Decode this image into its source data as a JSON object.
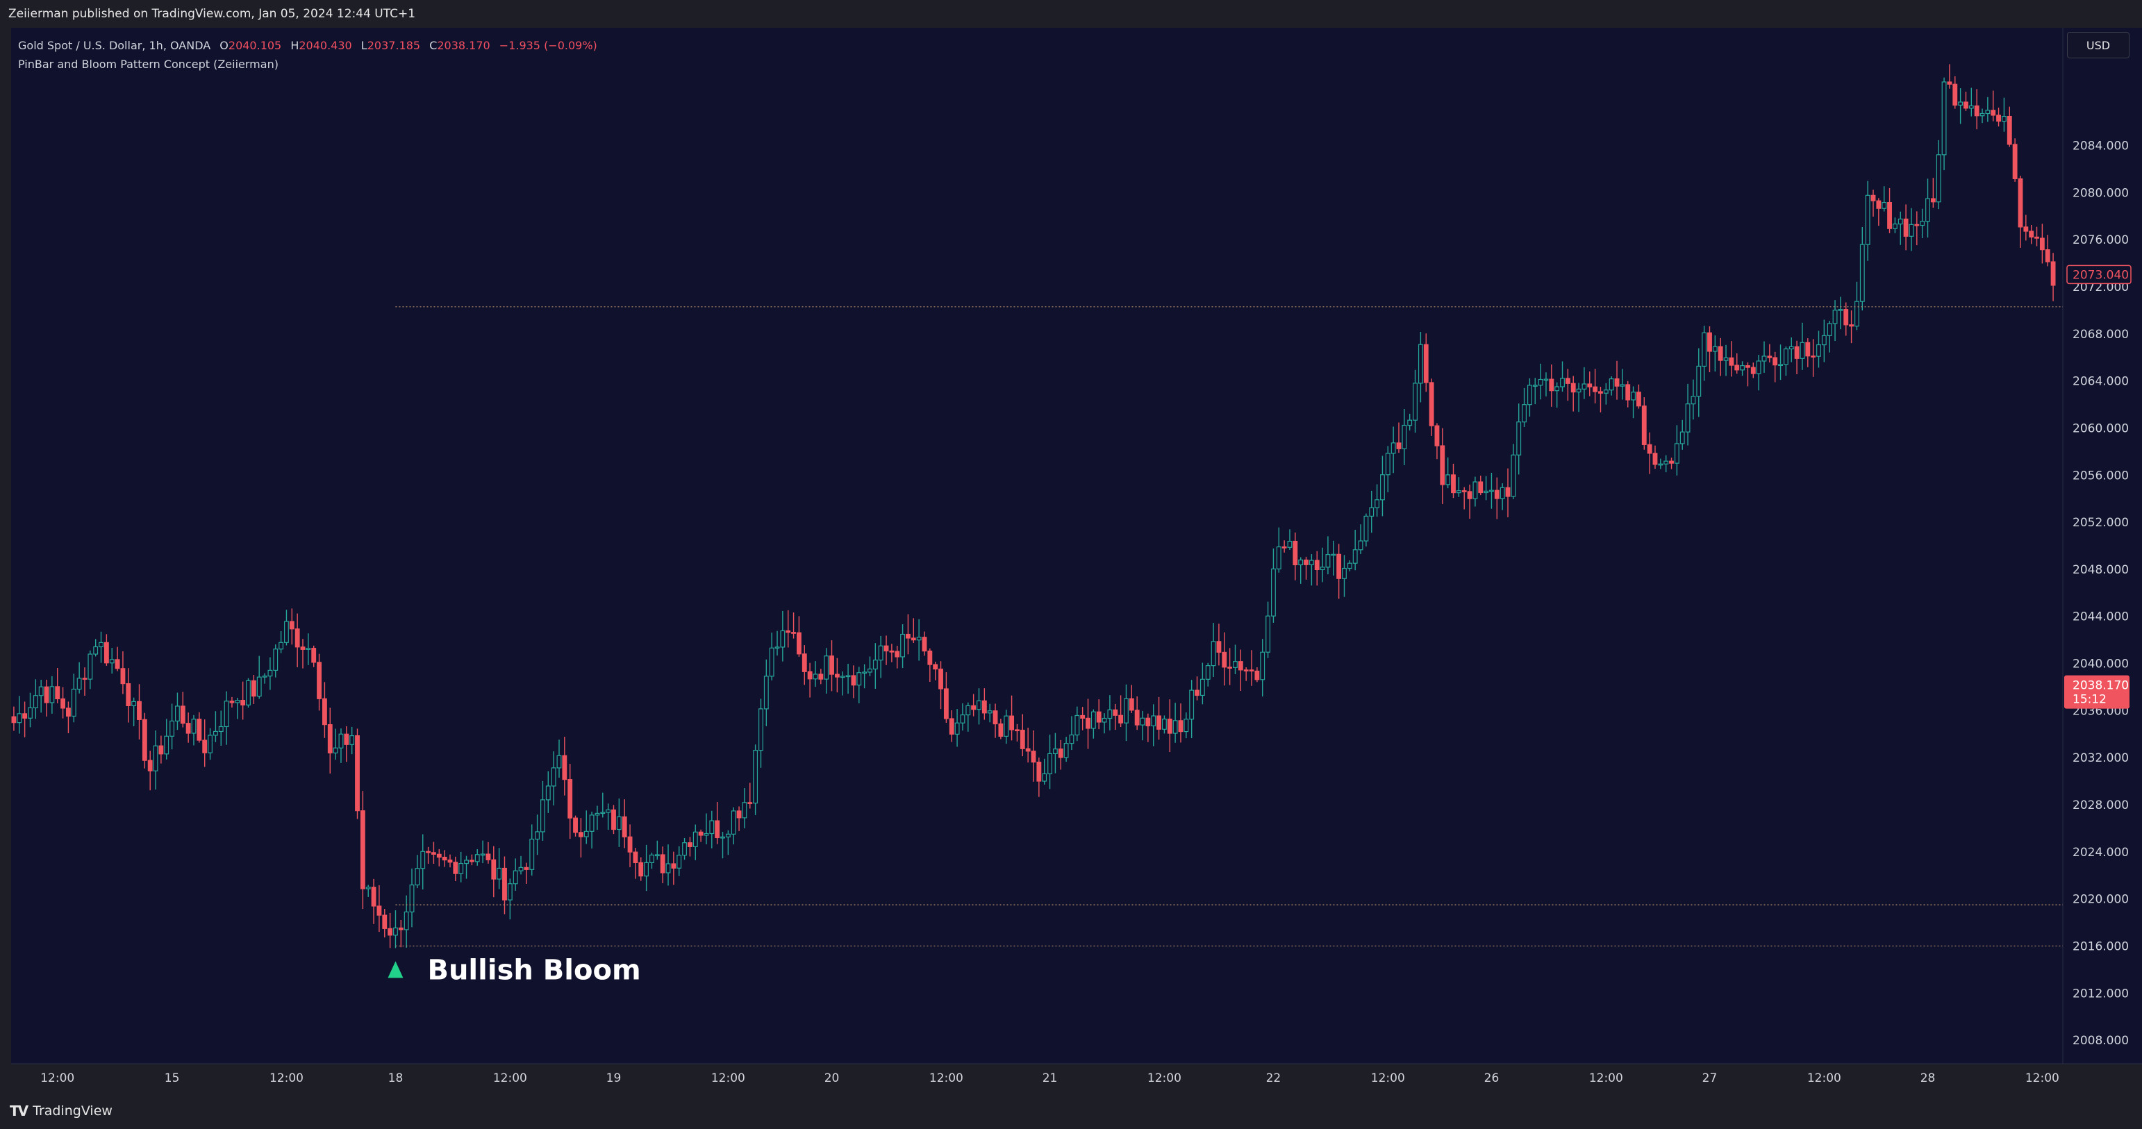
{
  "header": {
    "published": "Zeiierman published on TradingView.com, Jan 05, 2024 12:44 UTC+1"
  },
  "legend": {
    "symbol": "Gold Spot / U.S. Dollar, 1h, OANDA",
    "o_label": "O",
    "o_value": "2040.105",
    "h_label": "H",
    "h_value": "2040.430",
    "l_label": "L",
    "l_value": "2037.185",
    "c_label": "C",
    "c_value": "2038.170",
    "change": "−1.935 (−0.09%)",
    "indicator": "PinBar and Bloom Pattern Concept (Zeiierman)"
  },
  "currency": "USD",
  "footer": {
    "brand": "TradingView"
  },
  "colors": {
    "background": "#10112d",
    "up": "#26a69a",
    "down": "#f0555f",
    "level_line": "#b8906a",
    "signal": "#22d28a"
  },
  "chart_data": {
    "type": "candlestick",
    "symbol": "XAUUSD",
    "timeframe": "1h",
    "ylim": [
      2006,
      2094
    ],
    "y_ticks": [
      2008,
      2012,
      2016,
      2020,
      2024,
      2028,
      2032,
      2036,
      2040,
      2044,
      2048,
      2052,
      2056,
      2060,
      2064,
      2068,
      2072,
      2076,
      2080,
      2084
    ],
    "y_tick_labels": [
      "2008.000",
      "2012.000",
      "2016.000",
      "2020.000",
      "2024.000",
      "2028.000",
      "2032.000",
      "2036.000",
      "2040.000",
      "2044.000",
      "2048.000",
      "2052.000",
      "2056.000",
      "2060.000",
      "2064.000",
      "2068.000",
      "2072.000",
      "2076.000",
      "2080.000",
      "2084.000"
    ],
    "x_ticks": [
      {
        "bar": 8,
        "label": "12:00"
      },
      {
        "bar": 29,
        "label": "15"
      },
      {
        "bar": 50,
        "label": "12:00"
      },
      {
        "bar": 70,
        "label": "18"
      },
      {
        "bar": 91,
        "label": "12:00"
      },
      {
        "bar": 110,
        "label": "19"
      },
      {
        "bar": 131,
        "label": "12:00"
      },
      {
        "bar": 150,
        "label": "20"
      },
      {
        "bar": 171,
        "label": "12:00"
      },
      {
        "bar": 190,
        "label": "21"
      },
      {
        "bar": 211,
        "label": "12:00"
      },
      {
        "bar": 231,
        "label": "22"
      },
      {
        "bar": 252,
        "label": "12:00"
      },
      {
        "bar": 271,
        "label": "26"
      },
      {
        "bar": 292,
        "label": "12:00"
      },
      {
        "bar": 311,
        "label": "27"
      },
      {
        "bar": 332,
        "label": "12:00"
      },
      {
        "bar": 351,
        "label": "28"
      },
      {
        "bar": 372,
        "label": "12:00"
      }
    ],
    "waypoints": [
      [
        0,
        2035
      ],
      [
        5,
        2038
      ],
      [
        10,
        2036
      ],
      [
        15,
        2042
      ],
      [
        20,
        2039
      ],
      [
        25,
        2031
      ],
      [
        30,
        2036
      ],
      [
        35,
        2033
      ],
      [
        40,
        2037
      ],
      [
        45,
        2038
      ],
      [
        50,
        2043
      ],
      [
        55,
        2041
      ],
      [
        58,
        2032
      ],
      [
        62,
        2034
      ],
      [
        64,
        2021
      ],
      [
        68,
        2018
      ],
      [
        70,
        2017
      ],
      [
        75,
        2023
      ],
      [
        80,
        2023
      ],
      [
        85,
        2024
      ],
      [
        90,
        2021
      ],
      [
        95,
        2024
      ],
      [
        100,
        2033
      ],
      [
        102,
        2026
      ],
      [
        108,
        2027
      ],
      [
        112,
        2026
      ],
      [
        115,
        2023
      ],
      [
        120,
        2023
      ],
      [
        125,
        2026
      ],
      [
        130,
        2026
      ],
      [
        135,
        2029
      ],
      [
        138,
        2040
      ],
      [
        142,
        2043
      ],
      [
        145,
        2039
      ],
      [
        150,
        2040
      ],
      [
        155,
        2039
      ],
      [
        160,
        2041
      ],
      [
        165,
        2042
      ],
      [
        168,
        2040
      ],
      [
        172,
        2034
      ],
      [
        176,
        2036
      ],
      [
        180,
        2035
      ],
      [
        184,
        2034
      ],
      [
        188,
        2030
      ],
      [
        192,
        2033
      ],
      [
        196,
        2035
      ],
      [
        200,
        2036
      ],
      [
        205,
        2036
      ],
      [
        210,
        2035
      ],
      [
        214,
        2034
      ],
      [
        216,
        2037
      ],
      [
        220,
        2041
      ],
      [
        225,
        2040
      ],
      [
        228,
        2039
      ],
      [
        230,
        2045
      ],
      [
        232,
        2050
      ],
      [
        236,
        2049
      ],
      [
        240,
        2049
      ],
      [
        244,
        2048
      ],
      [
        248,
        2052
      ],
      [
        252,
        2057
      ],
      [
        256,
        2060
      ],
      [
        258,
        2068
      ],
      [
        260,
        2061
      ],
      [
        262,
        2055
      ],
      [
        266,
        2055
      ],
      [
        270,
        2054
      ],
      [
        274,
        2055
      ],
      [
        278,
        2064
      ],
      [
        282,
        2064
      ],
      [
        286,
        2063
      ],
      [
        290,
        2064
      ],
      [
        294,
        2063
      ],
      [
        298,
        2062
      ],
      [
        300,
        2057
      ],
      [
        304,
        2058
      ],
      [
        308,
        2062
      ],
      [
        310,
        2068
      ],
      [
        314,
        2066
      ],
      [
        318,
        2065
      ],
      [
        322,
        2066
      ],
      [
        326,
        2067
      ],
      [
        330,
        2067
      ],
      [
        334,
        2069
      ],
      [
        338,
        2070
      ],
      [
        340,
        2079
      ],
      [
        344,
        2078
      ],
      [
        348,
        2077
      ],
      [
        352,
        2079
      ],
      [
        354,
        2089
      ],
      [
        358,
        2088
      ],
      [
        362,
        2087
      ],
      [
        366,
        2085
      ],
      [
        368,
        2078
      ],
      [
        372,
        2076
      ],
      [
        374,
        2073
      ]
    ],
    "last_bar": 374,
    "levels": [
      {
        "price": 2070.3,
        "from_bar": 70
      },
      {
        "price": 2019.5,
        "from_bar": 70
      },
      {
        "price": 2016.0,
        "from_bar": 70
      }
    ],
    "last_price_label": "2038.170",
    "last_price_countdown": "15:12",
    "last_price_value": 2038.17,
    "level_label": "2073.040",
    "level_label_value": 2073.04,
    "annotations": [
      {
        "label": "Bullish Bloom",
        "bar": 70,
        "price": 2014,
        "type": "bullish"
      }
    ]
  }
}
